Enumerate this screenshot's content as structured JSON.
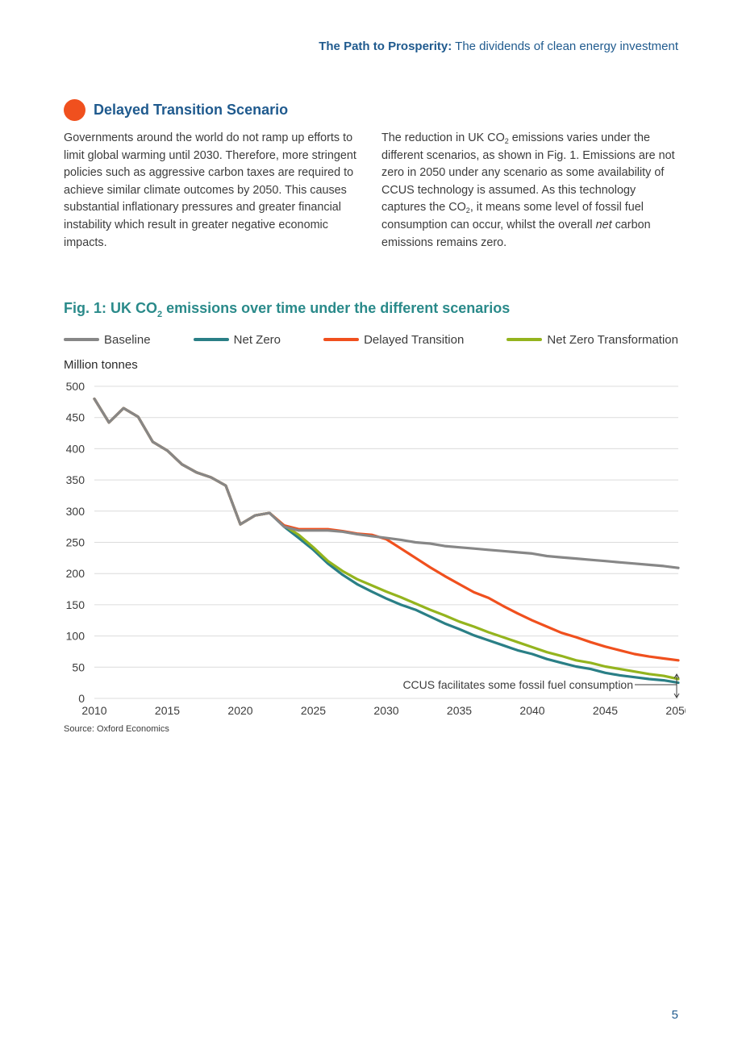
{
  "header": {
    "bold": "The Path to Prosperity:",
    "rest": " The dividends of clean energy investment"
  },
  "section": {
    "title": "Delayed Transition Scenario",
    "left_text": "Governments around the world do not ramp up efforts to limit global warming until 2030. Therefore, more stringent policies such as aggressive carbon taxes are required to achieve similar climate outcomes by 2050. This causes substantial inflationary pressures and greater financial instability which result in greater negative economic impacts.",
    "right_text": {
      "p1": "The reduction in UK CO",
      "sub1": "2",
      "p2": " emissions varies under the different scenarios, as shown in Fig. 1. Emissions are not zero in 2050 under any scenario as some availability of CCUS technology is assumed. As this technology captures the CO",
      "sub2": "2",
      "p3": ", it means some level of fossil fuel consumption can occur, whilst the overall ",
      "em": "net",
      "p4": " carbon emissions remains zero."
    }
  },
  "figure": {
    "title_a": "Fig. 1: UK CO",
    "title_sub": "2",
    "title_b": " emissions over time under the different scenarios",
    "source": "Source: Oxford Economics"
  },
  "page_number": "5",
  "chart_data": {
    "type": "line",
    "ylabel": "Million tonnes",
    "xlabel": "",
    "ylim": [
      0,
      500
    ],
    "xlim": [
      2010,
      2050
    ],
    "yticks": [
      0,
      50,
      100,
      150,
      200,
      250,
      300,
      350,
      400,
      450,
      500
    ],
    "xticks": [
      2010,
      2015,
      2020,
      2025,
      2030,
      2035,
      2040,
      2045,
      2050
    ],
    "grid": "horizontal",
    "legend_position": "top",
    "annotation": "CCUS facilitates some fossil fuel consumption",
    "x": [
      2010,
      2011,
      2012,
      2013,
      2014,
      2015,
      2016,
      2017,
      2018,
      2019,
      2020,
      2021,
      2022,
      2023,
      2024,
      2025,
      2026,
      2027,
      2028,
      2029,
      2030,
      2031,
      2032,
      2033,
      2034,
      2035,
      2036,
      2037,
      2038,
      2039,
      2040,
      2041,
      2042,
      2043,
      2044,
      2045,
      2046,
      2047,
      2048,
      2049,
      2050
    ],
    "series": [
      {
        "name": "Baseline",
        "color": "#878787",
        "values": [
          480,
          442,
          465,
          451,
          411,
          397,
          375,
          362,
          354,
          341,
          279,
          293,
          297,
          275,
          269,
          269,
          269,
          267,
          263,
          260,
          257,
          254,
          250,
          248,
          244,
          242,
          240,
          238,
          236,
          234,
          232,
          228,
          226,
          224,
          222,
          220,
          218,
          216,
          214,
          212,
          209
        ]
      },
      {
        "name": "Net Zero",
        "color": "#2a7f86",
        "values": [
          480,
          442,
          465,
          451,
          411,
          397,
          375,
          362,
          354,
          341,
          279,
          293,
          297,
          275,
          257,
          238,
          216,
          198,
          183,
          171,
          160,
          150,
          142,
          131,
          120,
          111,
          101,
          93,
          85,
          77,
          71,
          63,
          57,
          51,
          47,
          41,
          37,
          34,
          31,
          29,
          25
        ]
      },
      {
        "name": "Delayed Transition",
        "color": "#f0501e",
        "values": [
          480,
          442,
          465,
          451,
          411,
          397,
          375,
          362,
          354,
          341,
          279,
          293,
          297,
          277,
          271,
          271,
          271,
          268,
          264,
          262,
          255,
          240,
          225,
          210,
          196,
          183,
          170,
          161,
          148,
          136,
          125,
          115,
          105,
          98,
          90,
          83,
          77,
          71,
          67,
          64,
          61
        ]
      },
      {
        "name": "Net Zero Transformation",
        "color": "#94b41e",
        "values": [
          480,
          442,
          465,
          451,
          411,
          397,
          375,
          362,
          354,
          341,
          279,
          293,
          297,
          277,
          262,
          242,
          220,
          204,
          191,
          181,
          171,
          162,
          152,
          142,
          133,
          123,
          115,
          106,
          98,
          90,
          82,
          74,
          68,
          61,
          57,
          51,
          47,
          43,
          39,
          36,
          31
        ]
      }
    ]
  }
}
